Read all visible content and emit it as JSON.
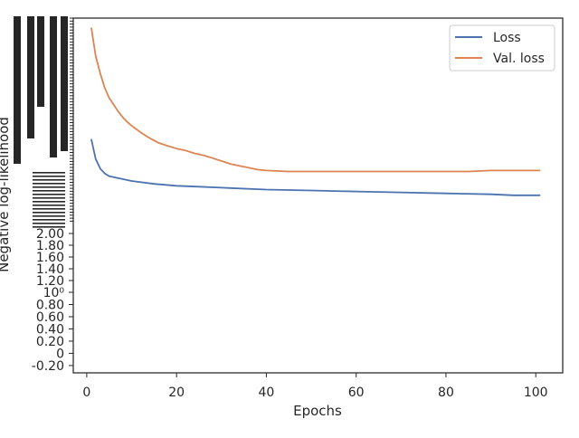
{
  "chart_data": {
    "type": "line",
    "title": "",
    "xlabel": "Epochs",
    "ylabel": "Negative log-likelihood",
    "xlim": [
      -3,
      106
    ],
    "ylim": [
      -0.32,
      1.23
    ],
    "y_scale": "symlog",
    "x_ticks": [
      0,
      20,
      40,
      60,
      80,
      100
    ],
    "x_tick_labels": [
      "0",
      "20",
      "40",
      "60",
      "80",
      "100"
    ],
    "y_tick_labels_legible": [
      "-0.20",
      "0",
      "0.20",
      "0.40",
      "0.60",
      "0.80",
      "10⁰",
      "1.20",
      "1.40",
      "1.60",
      "1.80",
      "2.00"
    ],
    "y_tick_values_legible": [
      -0.2,
      0,
      0.2,
      0.4,
      0.6,
      0.8,
      1.0,
      1.2,
      1.4,
      1.6,
      1.8,
      2.0
    ],
    "grid": false,
    "legend_position": "upper-right",
    "colors": {
      "loss": "#4c72b0",
      "val_loss": "#dd8452",
      "axis": "#262626"
    },
    "series": [
      {
        "name": "Loss",
        "x": [
          1,
          2,
          3,
          4,
          5,
          6,
          8,
          10,
          15,
          20,
          25,
          30,
          40,
          50,
          60,
          70,
          80,
          90,
          95,
          101
        ],
        "values": [
          1.103,
          1.082,
          1.072,
          1.067,
          1.064,
          1.063,
          1.061,
          1.059,
          1.056,
          1.054,
          1.053,
          1.052,
          1.05,
          1.049,
          1.048,
          1.047,
          1.046,
          1.045,
          1.044,
          1.044
        ]
      },
      {
        "name": "Val. loss",
        "x": [
          1,
          2,
          3,
          4,
          5,
          6,
          7,
          8,
          9,
          10,
          12,
          14,
          16,
          18,
          20,
          22,
          24,
          26,
          28,
          30,
          32,
          34,
          36,
          38,
          40,
          45,
          50,
          55,
          60,
          65,
          70,
          75,
          80,
          85,
          90,
          95,
          101
        ],
        "values": [
          1.22,
          1.19,
          1.172,
          1.157,
          1.146,
          1.139,
          1.132,
          1.126,
          1.121,
          1.117,
          1.11,
          1.104,
          1.099,
          1.096,
          1.093,
          1.091,
          1.088,
          1.086,
          1.083,
          1.08,
          1.077,
          1.075,
          1.073,
          1.071,
          1.07,
          1.069,
          1.069,
          1.069,
          1.069,
          1.069,
          1.069,
          1.069,
          1.069,
          1.069,
          1.07,
          1.07,
          1.07
        ]
      }
    ]
  }
}
